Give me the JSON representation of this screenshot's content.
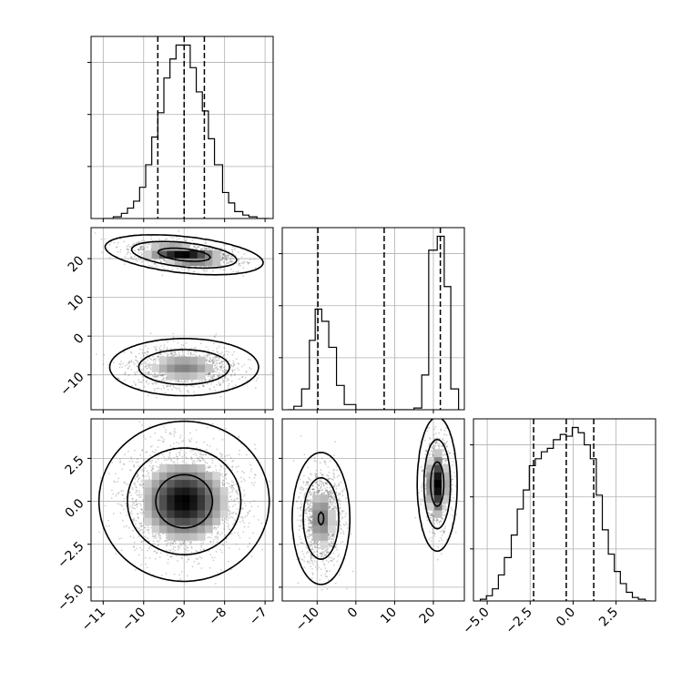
{
  "colors": {
    "line": "#000000",
    "grid": "#b0b0b0",
    "scatter": "#555555",
    "background": "#ffffff"
  },
  "chart_data": {
    "type": "corner",
    "grid": true,
    "params": [
      {
        "range": [
          -11.3,
          -6.8
        ],
        "ticks": [
          -11,
          -10,
          -9,
          -8,
          -7
        ],
        "tick_labels": [
          "−11",
          "−10",
          "−9",
          "−8",
          "−7"
        ],
        "quantiles": [
          -9.65,
          -9.0,
          -8.5
        ],
        "hist_ymax": 1.05,
        "hist": [
          [
            -11.0,
            0.0
          ],
          [
            -10.75,
            0.01
          ],
          [
            -10.55,
            0.03
          ],
          [
            -10.4,
            0.06
          ],
          [
            -10.25,
            0.1
          ],
          [
            -10.1,
            0.18
          ],
          [
            -9.95,
            0.31
          ],
          [
            -9.8,
            0.47
          ],
          [
            -9.65,
            0.61
          ],
          [
            -9.5,
            0.81
          ],
          [
            -9.35,
            0.92
          ],
          [
            -9.2,
            1.0
          ],
          [
            -9.0,
            1.0
          ],
          [
            -8.85,
            0.87
          ],
          [
            -8.7,
            0.73
          ],
          [
            -8.55,
            0.62
          ],
          [
            -8.4,
            0.46
          ],
          [
            -8.25,
            0.31
          ],
          [
            -8.05,
            0.15
          ],
          [
            -7.9,
            0.09
          ],
          [
            -7.75,
            0.04
          ],
          [
            -7.55,
            0.02
          ],
          [
            -7.4,
            0.01
          ],
          [
            -7.2,
            0.0
          ]
        ]
      },
      {
        "range": [
          -19,
          28
        ],
        "ticks": [
          -10,
          0,
          10,
          20
        ],
        "tick_labels": [
          "−10",
          "0",
          "10",
          "20"
        ],
        "quantiles": [
          -9.8,
          7.3,
          21.8
        ],
        "hist_ymax": 1.05,
        "hist": [
          [
            -17.5,
            0.0
          ],
          [
            -16.0,
            0.02
          ],
          [
            -14.0,
            0.12
          ],
          [
            -12.0,
            0.4
          ],
          [
            -10.5,
            0.58
          ],
          [
            -8.8,
            0.51
          ],
          [
            -7.0,
            0.36
          ],
          [
            -5.0,
            0.14
          ],
          [
            -3.0,
            0.03
          ],
          [
            0.0,
            0.0
          ],
          [
            10.0,
            0.0
          ],
          [
            15.0,
            0.01
          ],
          [
            17.0,
            0.2
          ],
          [
            18.8,
            0.92
          ],
          [
            21.0,
            1.0
          ],
          [
            22.8,
            0.71
          ],
          [
            24.5,
            0.12
          ],
          [
            26.5,
            0.0
          ]
        ]
      },
      {
        "range": [
          -5.8,
          4.8
        ],
        "ticks": [
          -5.0,
          -2.5,
          0.0,
          2.5
        ],
        "tick_labels": [
          "−5.0",
          "−2.5",
          "0.0",
          "2.5"
        ],
        "quantiles": [
          -2.3,
          -0.4,
          1.2
        ],
        "hist_ymax": 1.05,
        "hist": [
          [
            -5.4,
            0.01
          ],
          [
            -5.05,
            0.03
          ],
          [
            -4.7,
            0.07
          ],
          [
            -4.35,
            0.15
          ],
          [
            -4.0,
            0.25
          ],
          [
            -3.6,
            0.38
          ],
          [
            -3.25,
            0.53
          ],
          [
            -2.9,
            0.64
          ],
          [
            -2.55,
            0.78
          ],
          [
            -2.2,
            0.82
          ],
          [
            -1.85,
            0.86
          ],
          [
            -1.5,
            0.88
          ],
          [
            -1.15,
            0.93
          ],
          [
            -0.75,
            0.96
          ],
          [
            -0.4,
            0.95
          ],
          [
            -0.05,
            1.0
          ],
          [
            0.3,
            0.97
          ],
          [
            0.65,
            0.9
          ],
          [
            1.0,
            0.82
          ],
          [
            1.35,
            0.61
          ],
          [
            1.7,
            0.41
          ],
          [
            2.05,
            0.27
          ],
          [
            2.4,
            0.17
          ],
          [
            2.75,
            0.1
          ],
          [
            3.1,
            0.05
          ],
          [
            3.45,
            0.02
          ],
          [
            3.8,
            0.01
          ],
          [
            4.2,
            0.0
          ]
        ]
      }
    ],
    "pairs": [
      {
        "x_param": 0,
        "y_param": 1,
        "clusters": [
          {
            "center": [
              -9.0,
              21.0
            ],
            "sd": [
              0.65,
              1.7
            ],
            "rho": -0.4,
            "weight": 0.5
          },
          {
            "center": [
              -9.0,
              -8.0
            ],
            "sd": [
              0.65,
              2.6
            ],
            "rho": 0.0,
            "weight": 0.5
          }
        ]
      },
      {
        "x_param": 0,
        "y_param": 2,
        "clusters": [
          {
            "center": [
              -9.0,
              0.0
            ],
            "sd": [
              0.7,
              1.55
            ],
            "rho": 0.0,
            "weight": 1.0
          }
        ]
      },
      {
        "x_param": 1,
        "y_param": 2,
        "clusters": [
          {
            "center": [
              -9.0,
              -1.0
            ],
            "sd": [
              2.6,
              1.35
            ],
            "rho": 0.0,
            "weight": 0.5
          },
          {
            "center": [
              21.0,
              1.0
            ],
            "sd": [
              1.7,
              1.3
            ],
            "rho": 0.0,
            "weight": 0.5
          }
        ]
      }
    ],
    "contour_levels": [
      0.394,
      0.865,
      0.989
    ]
  }
}
